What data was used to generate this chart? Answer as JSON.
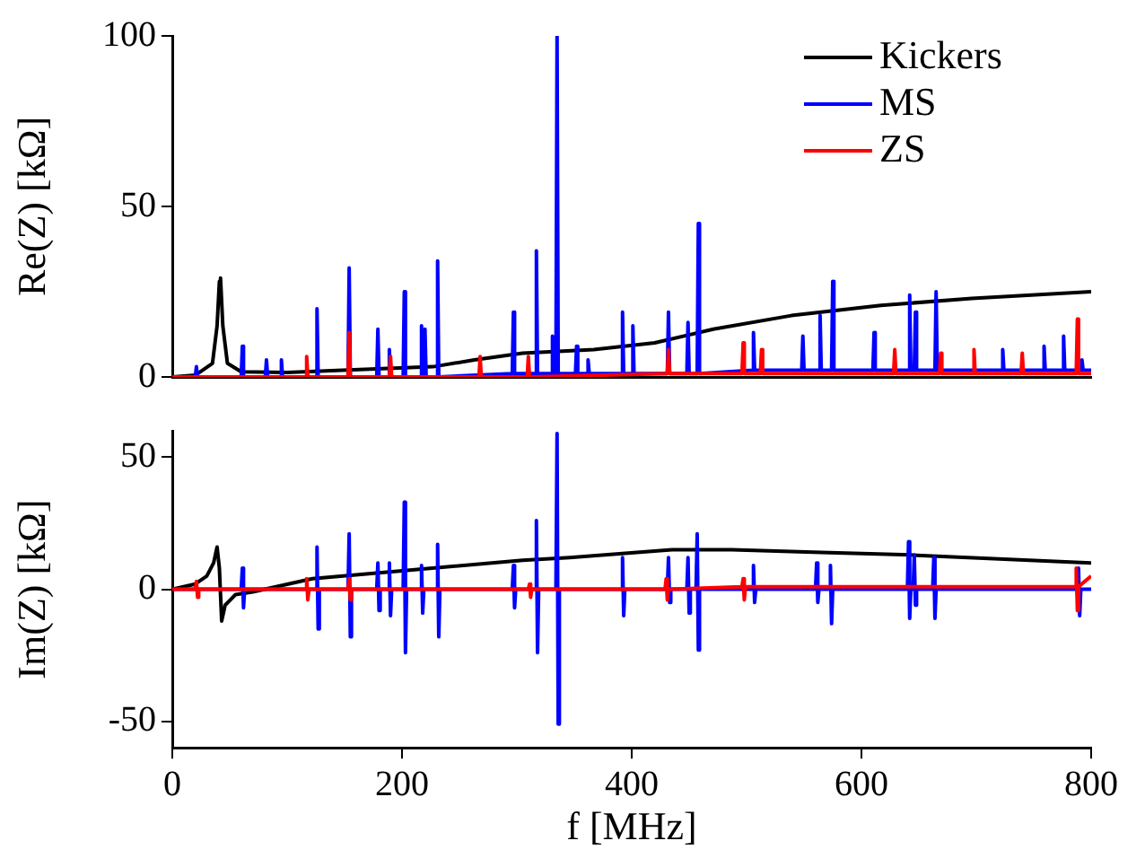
{
  "chart_data": [
    {
      "type": "line",
      "ylabel": "Re(Z) [kΩ]",
      "xlim": [
        0,
        800
      ],
      "xticks": [
        0,
        200,
        400,
        600,
        800
      ],
      "ylim": [
        0,
        100
      ],
      "yticks": [
        0,
        50,
        100
      ],
      "tick_labels": "y",
      "grid": false,
      "legend": "top right",
      "marker": "none",
      "line_style": "solid",
      "series": [
        {
          "name": "Kickers",
          "color": "#000000",
          "x": [
            0,
            20,
            35,
            39,
            41,
            42,
            44,
            48,
            60,
            100,
            148,
            227,
            263,
            305,
            367,
            420,
            471,
            539,
            617,
            696,
            800
          ],
          "values": [
            0,
            0.5,
            4,
            15,
            28,
            29,
            15,
            4,
            1.5,
            1.3,
            2,
            3,
            5,
            7,
            8,
            10,
            14,
            18,
            21,
            23,
            25
          ]
        },
        {
          "name": "MS",
          "color": "#0000ff",
          "x": [
            0,
            20,
            21,
            22,
            60,
            61,
            62,
            81,
            82,
            83,
            94,
            95,
            96,
            125,
            126,
            127,
            153,
            154,
            155,
            178,
            179,
            180,
            188,
            189,
            190,
            201,
            202,
            203,
            216,
            217,
            218,
            219,
            220,
            221,
            230,
            231,
            232,
            296,
            297,
            298,
            316,
            317,
            318,
            330,
            331,
            332,
            334,
            335,
            336,
            351,
            352,
            353,
            361,
            362,
            363,
            391,
            392,
            393,
            400,
            401,
            402,
            431,
            432,
            433,
            448,
            449,
            450,
            457,
            458,
            459,
            505,
            506,
            507,
            548,
            549,
            550,
            563,
            564,
            565,
            574,
            575,
            576,
            610,
            611,
            612,
            641,
            642,
            643,
            646,
            647,
            648,
            664,
            665,
            666,
            722,
            723,
            724,
            758,
            759,
            760,
            775,
            776,
            777,
            791,
            792,
            793,
            800
          ],
          "values": [
            0,
            0,
            3,
            0,
            0,
            9,
            0,
            0,
            5,
            0,
            0,
            5,
            0,
            0,
            20,
            0,
            0,
            32,
            0,
            0,
            14,
            0,
            0,
            8,
            0,
            0,
            25,
            0,
            0,
            15,
            0,
            0,
            14,
            0,
            0,
            34,
            0,
            1,
            19,
            1,
            1,
            37,
            1,
            1,
            12,
            1,
            1,
            100,
            1,
            1,
            9,
            1,
            1,
            5,
            1,
            1,
            19,
            1,
            1,
            15,
            1,
            1,
            19,
            1,
            1,
            16,
            1,
            1,
            45,
            1,
            2,
            13,
            2,
            2,
            12,
            2,
            2,
            18,
            2,
            2,
            28,
            2,
            2,
            13,
            2,
            2,
            24,
            2,
            2,
            19,
            2,
            2,
            25,
            2,
            2,
            8,
            2,
            2,
            9,
            2,
            2,
            12,
            2,
            2,
            5,
            2,
            2
          ]
        },
        {
          "name": "ZS",
          "color": "#ff0000",
          "x": [
            0,
            116,
            117,
            118,
            153,
            154,
            155,
            189,
            190,
            191,
            267,
            268,
            269,
            309,
            310,
            311,
            431,
            432,
            433,
            496,
            497,
            498,
            512,
            513,
            514,
            628,
            629,
            630,
            668,
            669,
            670,
            697,
            698,
            699,
            739,
            740,
            741,
            787,
            788,
            789,
            800
          ],
          "values": [
            0,
            0,
            6,
            0,
            0,
            13,
            0,
            0,
            6,
            0,
            0,
            6,
            0,
            0,
            6,
            0,
            1,
            8,
            1,
            1,
            10,
            1,
            1,
            8,
            1,
            1,
            8,
            1,
            1,
            7,
            1,
            1,
            8,
            1,
            1,
            7,
            1,
            1,
            17,
            1,
            1
          ]
        }
      ]
    },
    {
      "type": "line",
      "xlabel": "f [MHz]",
      "ylabel": "Im(Z) [kΩ]",
      "xlim": [
        0,
        800
      ],
      "xticks": [
        0,
        200,
        400,
        600,
        800
      ],
      "ylim": [
        -60,
        60
      ],
      "yticks": [
        -50,
        0,
        50
      ],
      "grid": false,
      "legend": false,
      "marker": "none",
      "line_style": "solid",
      "series": [
        {
          "color": "#000000",
          "x": [
            0,
            20,
            30,
            36,
            39,
            41,
            43,
            46,
            55,
            70,
            122,
            200,
            305,
            346,
            435,
            487,
            565,
            643,
            800
          ],
          "values": [
            0,
            2,
            5,
            10,
            16,
            8,
            -12,
            -6,
            -2,
            -1,
            4,
            7,
            11,
            12,
            15,
            15,
            14,
            13,
            10
          ]
        },
        {
          "color": "#0000ff",
          "x": [
            0,
            60,
            61,
            62,
            63,
            125,
            126,
            127,
            128,
            153,
            154,
            155,
            156,
            178,
            179,
            180,
            181,
            188,
            189,
            190,
            191,
            201,
            202,
            203,
            204,
            216,
            217,
            218,
            219,
            230,
            231,
            232,
            233,
            296,
            297,
            298,
            299,
            316,
            317,
            318,
            319,
            334,
            335,
            336,
            337,
            391,
            392,
            393,
            394,
            431,
            432,
            433,
            434,
            448,
            449,
            450,
            451,
            456,
            457,
            458,
            459,
            505,
            506,
            507,
            508,
            560,
            561,
            562,
            563,
            572,
            573,
            574,
            575,
            640,
            641,
            642,
            643,
            645,
            646,
            647,
            648,
            662,
            663,
            664,
            665,
            788,
            789,
            790,
            791,
            800
          ],
          "values": [
            0,
            0,
            8,
            -7,
            0,
            0,
            16,
            -15,
            0,
            0,
            21,
            -18,
            0,
            0,
            10,
            -8,
            0,
            0,
            10,
            -10,
            0,
            0,
            33,
            -24,
            0,
            0,
            9,
            -9,
            0,
            0,
            17,
            -18,
            0,
            0,
            9,
            -7,
            0,
            0,
            26,
            -24,
            0,
            0,
            59,
            -51,
            0,
            0,
            12,
            -10,
            0,
            0,
            12,
            -5,
            0,
            0,
            12,
            -9,
            0,
            0,
            21,
            -23,
            0,
            0,
            9,
            -5,
            0,
            0,
            10,
            -5,
            0,
            0,
            9,
            -13,
            0,
            0,
            18,
            -11,
            0,
            0,
            13,
            -6,
            0,
            0,
            12,
            -11,
            0,
            0,
            8,
            -10,
            0,
            0
          ]
        },
        {
          "color": "#ff0000",
          "x": [
            0,
            20,
            21,
            22,
            23,
            116,
            117,
            118,
            119,
            153,
            154,
            155,
            156,
            310,
            311,
            312,
            313,
            429,
            430,
            431,
            432,
            496,
            497,
            498,
            499,
            786,
            787,
            788,
            789,
            800
          ],
          "values": [
            0,
            0,
            3,
            -3,
            0,
            0,
            4,
            -4,
            0,
            0,
            4,
            -4,
            0,
            0,
            2,
            -3,
            0,
            0,
            4,
            -4,
            0,
            1,
            4,
            -4,
            1,
            1,
            8,
            -8,
            1,
            5
          ]
        }
      ]
    }
  ]
}
